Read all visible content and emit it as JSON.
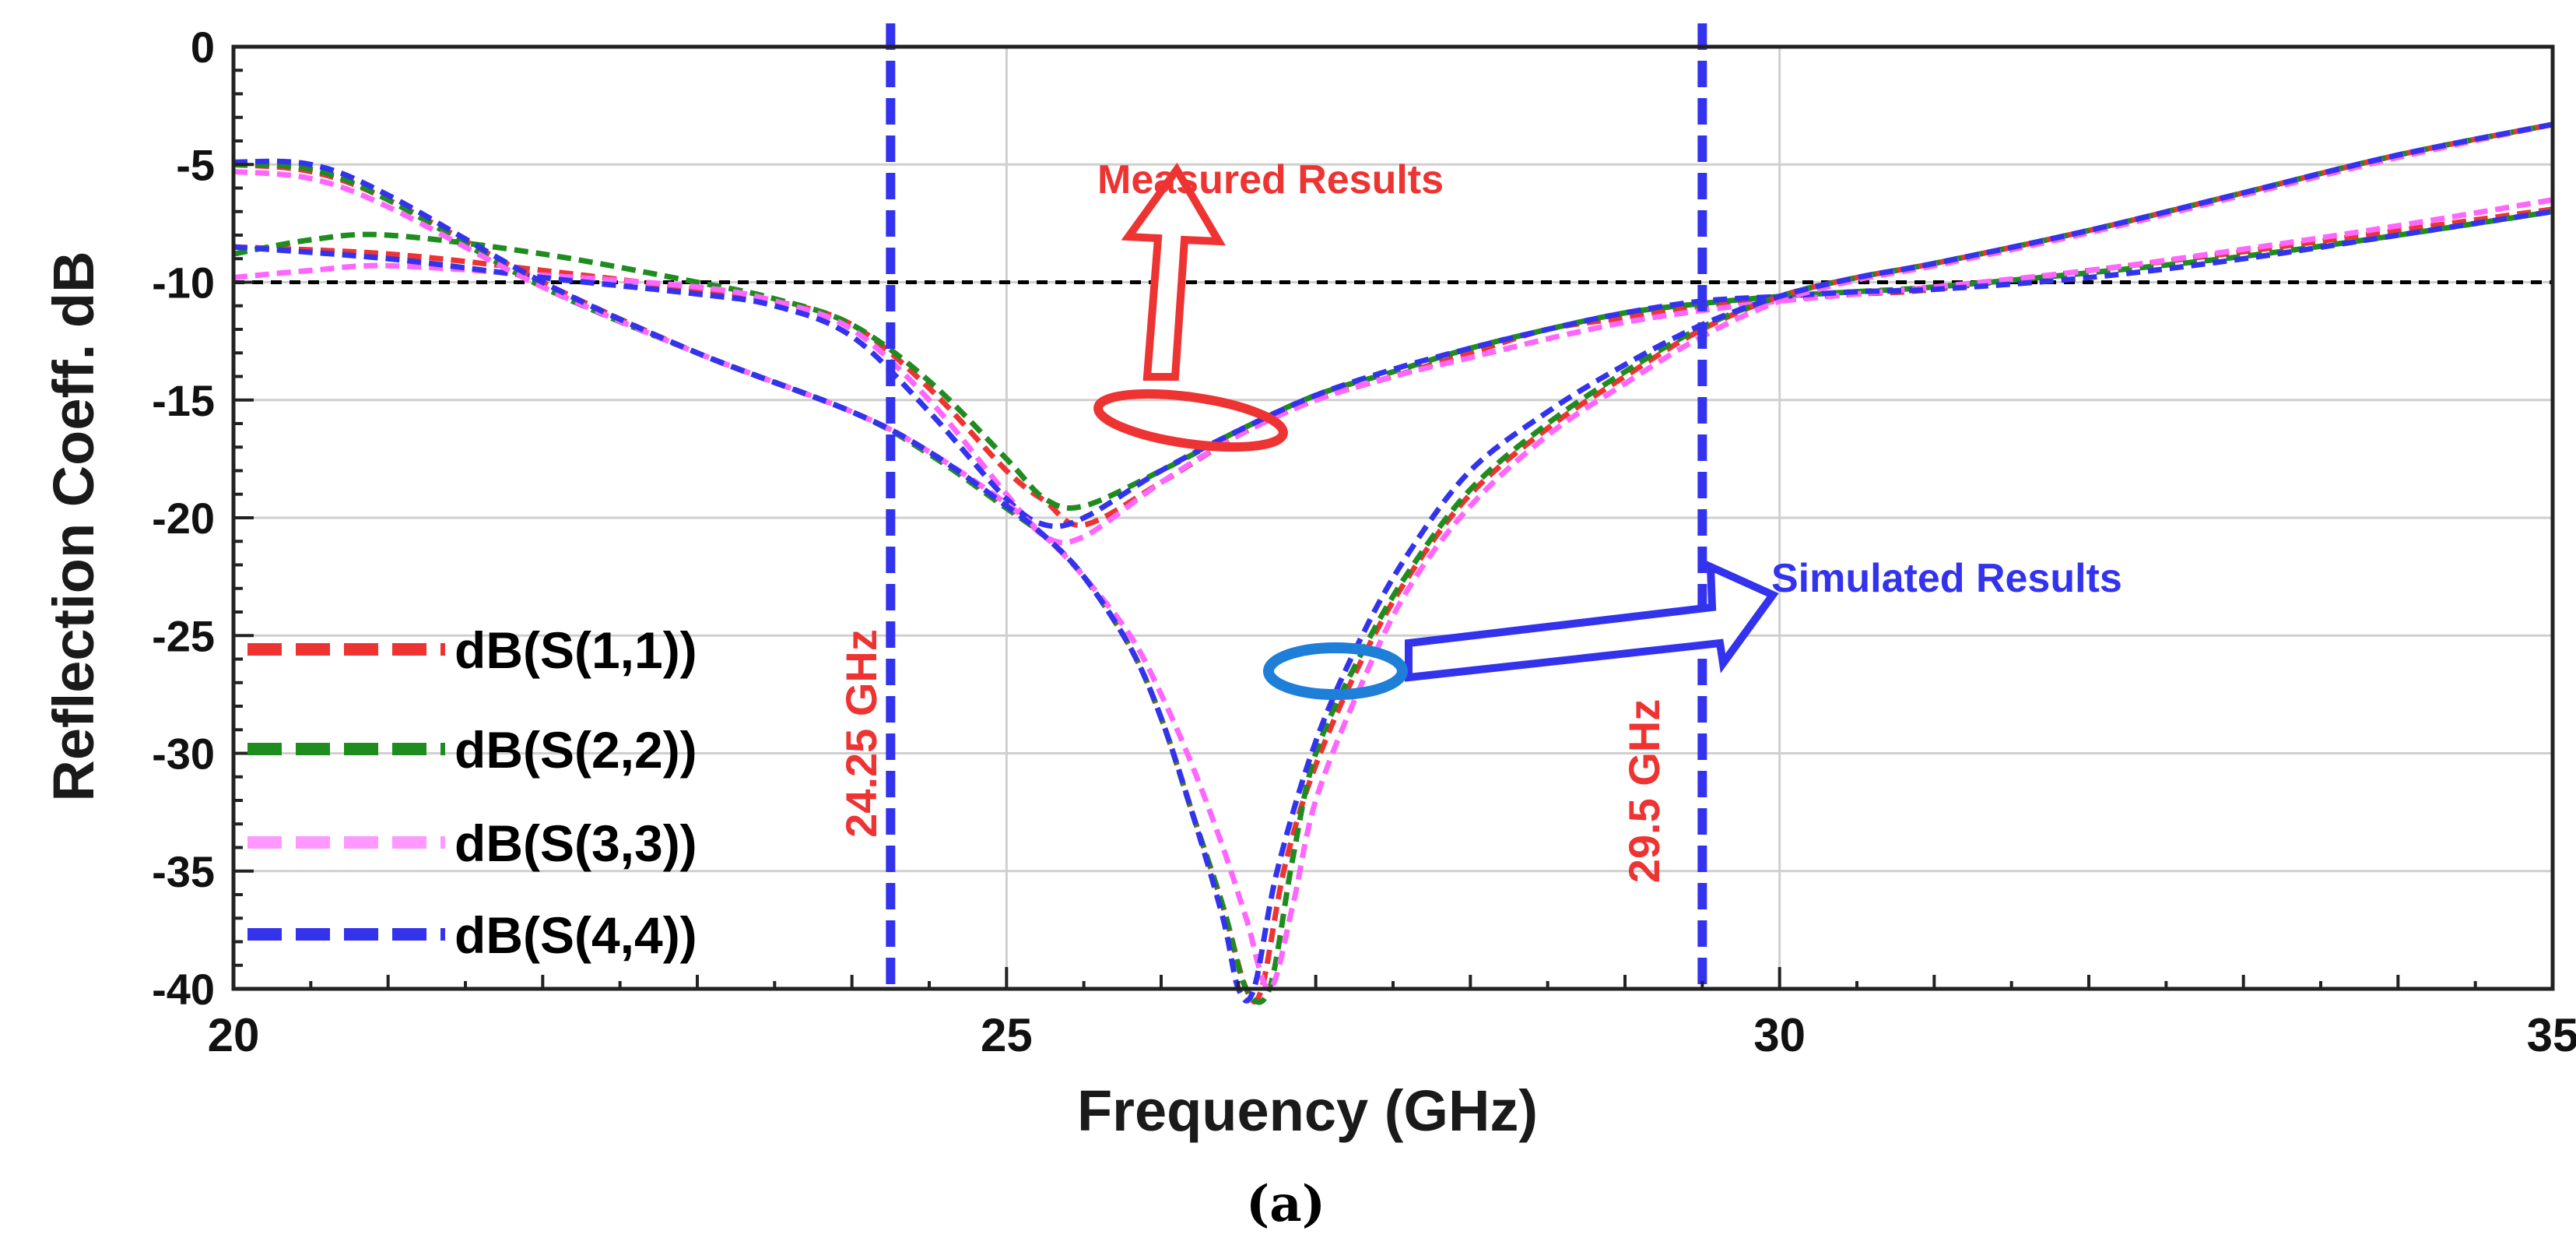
{
  "chart_data": {
    "type": "line",
    "title": "",
    "xlabel": "Frequency (GHz)",
    "ylabel": "Reflection Coeff. dB",
    "xlim": [
      20,
      35
    ],
    "ylim": [
      -40,
      0
    ],
    "x_ticks": [
      20,
      25,
      30,
      35
    ],
    "y_ticks": [
      0,
      -5,
      -10,
      -15,
      -20,
      -25,
      -30,
      -35,
      -40
    ],
    "x_tick_labels": [
      "20",
      "25",
      "30",
      "35"
    ],
    "y_tick_labels": [
      "0",
      "-5",
      "-10",
      "-15",
      "-20",
      "-25",
      "-30",
      "-35",
      "-40"
    ],
    "grid": true,
    "threshold": {
      "y": -10,
      "color": "#000000"
    },
    "vlines": [
      {
        "x": 24.25,
        "label": "24.25 GHz",
        "color": "#3333ee",
        "label_color": "#ee3333"
      },
      {
        "x": 29.5,
        "label": "29.5 GHz",
        "color": "#3333ee",
        "label_color": "#ee3333"
      }
    ],
    "legend_position": "left",
    "series": [
      {
        "name": "dB(S(1,1))",
        "group": "measured",
        "color": "#ee3333",
        "x": [
          20,
          21,
          22,
          23,
          23.5,
          24,
          24.5,
          25,
          25.25,
          25.5,
          26,
          26.5,
          27,
          27.5,
          28,
          28.5,
          29,
          29.5,
          30,
          30.5,
          31,
          32,
          33,
          34,
          35
        ],
        "y": [
          -8.5,
          -8.8,
          -9.5,
          -10.3,
          -10.8,
          -11.8,
          -14.5,
          -18,
          -19.3,
          -20.3,
          -18.5,
          -16.5,
          -15,
          -14,
          -13,
          -12,
          -11.5,
          -11,
          -10.7,
          -10.5,
          -10.3,
          -9.5,
          -8.7,
          -7.8,
          -6.9
        ]
      },
      {
        "name": "dB(S(2,2))",
        "group": "measured",
        "color": "#1e8c1e",
        "x": [
          20,
          20.5,
          21,
          22,
          23,
          23.5,
          24,
          24.5,
          25,
          25.25,
          25.5,
          26,
          26.5,
          27,
          27.5,
          28,
          28.5,
          29,
          29.5,
          30,
          30.5,
          31,
          32,
          33,
          34,
          35
        ],
        "y": [
          -8.8,
          -8.2,
          -8,
          -8.8,
          -10,
          -10.7,
          -11.8,
          -14.2,
          -17.5,
          -19.2,
          -19.5,
          -18,
          -16.3,
          -14.8,
          -13.8,
          -12.8,
          -12,
          -11.3,
          -10.9,
          -10.6,
          -10.4,
          -10.2,
          -9.6,
          -8.9,
          -8,
          -7
        ]
      },
      {
        "name": "dB(S(3,3))",
        "group": "measured",
        "color": "#ff66ff",
        "x": [
          20,
          20.5,
          21,
          22,
          23,
          23.5,
          24,
          24.5,
          25,
          25.25,
          25.5,
          26,
          26.5,
          27,
          27.5,
          28,
          28.5,
          29,
          29.5,
          30,
          30.5,
          31,
          32,
          33,
          34,
          35
        ],
        "y": [
          -9.8,
          -9.5,
          -9.3,
          -9.7,
          -10.2,
          -10.8,
          -12,
          -15,
          -19,
          -20.8,
          -20.8,
          -18.5,
          -16.5,
          -15,
          -14,
          -13.2,
          -12.4,
          -11.7,
          -11.2,
          -10.8,
          -10.5,
          -10.2,
          -9.5,
          -8.6,
          -7.6,
          -6.5
        ]
      },
      {
        "name": "dB(S(4,4))",
        "group": "measured",
        "color": "#3333ee",
        "x": [
          20,
          21,
          22,
          23,
          23.5,
          24,
          24.5,
          25,
          25.25,
          25.5,
          26,
          26.5,
          27,
          27.5,
          28,
          28.5,
          29,
          29.5,
          30,
          30.5,
          31,
          32,
          33,
          34,
          35
        ],
        "y": [
          -8.5,
          -9,
          -9.8,
          -10.5,
          -11,
          -12.3,
          -15.5,
          -19.2,
          -20.3,
          -20,
          -18,
          -16.3,
          -14.8,
          -13.7,
          -12.8,
          -12,
          -11.3,
          -10.8,
          -10.6,
          -10.4,
          -10.3,
          -9.8,
          -9,
          -8,
          -7
        ]
      },
      {
        "name": "dB(S(1,1))",
        "group": "simulated",
        "color": "#ee3333",
        "x": [
          20,
          20.5,
          21,
          22,
          23,
          24,
          24.5,
          25,
          25.25,
          25.5,
          25.8,
          26,
          26.2,
          26.4,
          26.55,
          26.65,
          26.8,
          27,
          27.3,
          27.6,
          28,
          28.5,
          29,
          29.5,
          30,
          30.5,
          31,
          32,
          33,
          34,
          35
        ],
        "y": [
          -5,
          -5.3,
          -6.5,
          -10,
          -13,
          -15.5,
          -17.2,
          -19.5,
          -20.8,
          -22.5,
          -25.5,
          -28.5,
          -32.5,
          -36.5,
          -40,
          -40,
          -34.8,
          -30.5,
          -26,
          -22.5,
          -19,
          -16.2,
          -14,
          -12,
          -10.6,
          -9.8,
          -9.2,
          -7.8,
          -6.2,
          -4.6,
          -3.3
        ]
      },
      {
        "name": "dB(S(2,2))",
        "group": "simulated",
        "color": "#1e8c1e",
        "x": [
          20,
          20.5,
          21,
          22,
          23,
          24,
          24.5,
          25,
          25.25,
          25.5,
          25.8,
          26,
          26.2,
          26.4,
          26.55,
          26.7,
          26.85,
          27,
          27.3,
          27.6,
          28,
          28.5,
          29,
          29.5,
          30,
          30.5,
          31,
          32,
          33,
          34,
          35
        ],
        "y": [
          -5,
          -5.2,
          -6.5,
          -10.2,
          -13,
          -15.5,
          -17.3,
          -19.6,
          -20.8,
          -22.5,
          -25.5,
          -28.5,
          -32.5,
          -36.5,
          -40,
          -40,
          -34.5,
          -30,
          -25.7,
          -22.3,
          -18.8,
          -16,
          -13.8,
          -11.9,
          -10.6,
          -9.8,
          -9.2,
          -7.8,
          -6.2,
          -4.6,
          -3.3
        ]
      },
      {
        "name": "dB(S(3,3))",
        "group": "simulated",
        "color": "#ff66ff",
        "x": [
          20,
          20.5,
          21,
          22,
          23,
          24,
          24.5,
          25,
          25.25,
          25.5,
          25.8,
          26,
          26.2,
          26.4,
          26.55,
          26.7,
          26.85,
          27,
          27.3,
          27.6,
          28,
          28.5,
          29,
          29.5,
          30,
          30.5,
          31,
          32,
          33,
          34,
          35
        ],
        "y": [
          -5.3,
          -5.6,
          -6.8,
          -10.2,
          -13,
          -15.5,
          -17.2,
          -19.4,
          -20.8,
          -22.5,
          -25,
          -27.5,
          -30.5,
          -34,
          -37,
          -40,
          -36.5,
          -32,
          -27,
          -23,
          -19.5,
          -16.5,
          -14.3,
          -12.3,
          -10.8,
          -9.9,
          -9.3,
          -7.9,
          -6.3,
          -4.7,
          -3.3
        ]
      },
      {
        "name": "dB(S(4,4))",
        "group": "simulated",
        "color": "#3333ee",
        "x": [
          20,
          20.5,
          21,
          22,
          23,
          24,
          24.5,
          25,
          25.25,
          25.5,
          25.8,
          26,
          26.2,
          26.4,
          26.5,
          26.6,
          26.75,
          27,
          27.3,
          27.6,
          28,
          28.5,
          29,
          29.5,
          30,
          30.5,
          31,
          32,
          33,
          34,
          35
        ],
        "y": [
          -4.9,
          -5,
          -6.3,
          -10,
          -13,
          -15.5,
          -17.2,
          -19.5,
          -20.8,
          -22.5,
          -25.5,
          -28.5,
          -32.5,
          -37,
          -40,
          -40,
          -35,
          -29.5,
          -25,
          -21.5,
          -18,
          -15.5,
          -13.5,
          -11.8,
          -10.6,
          -9.8,
          -9.2,
          -7.8,
          -6.2,
          -4.6,
          -3.3
        ]
      }
    ],
    "annotations": [
      {
        "text": "Measured Results",
        "color": "#ee3333"
      },
      {
        "text": "Simulated Results",
        "color": "#3333ee"
      }
    ],
    "caption": "(a)"
  }
}
